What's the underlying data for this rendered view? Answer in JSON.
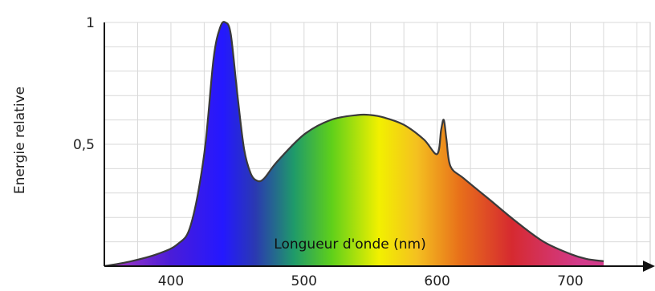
{
  "chart_data": {
    "type": "area",
    "xlabel": "Longueur d'onde (nm)",
    "ylabel": "Energie relative",
    "xlim": [
      350,
      760
    ],
    "ylim": [
      0,
      1
    ],
    "x_ticks": [
      400,
      500,
      600,
      700
    ],
    "x_tick_labels": [
      "400",
      "500",
      "600",
      "700"
    ],
    "y_ticks": [
      0.5,
      1
    ],
    "y_tick_labels": [
      "0,5",
      "1"
    ],
    "grid": true,
    "series": [
      {
        "x": [
          350,
          370,
          390,
          405,
          415,
          425,
          432,
          437,
          441,
          445,
          450,
          455,
          460,
          465,
          470,
          480,
          500,
          520,
          540,
          550,
          560,
          575,
          590,
          600,
          603,
          605,
          607,
          610,
          620,
          640,
          660,
          680,
          700,
          712,
          725
        ],
        "values": [
          0.0,
          0.02,
          0.05,
          0.09,
          0.17,
          0.46,
          0.85,
          0.98,
          1.0,
          0.95,
          0.7,
          0.48,
          0.38,
          0.35,
          0.36,
          0.43,
          0.54,
          0.6,
          0.62,
          0.62,
          0.61,
          0.58,
          0.52,
          0.46,
          0.56,
          0.6,
          0.52,
          0.41,
          0.36,
          0.27,
          0.18,
          0.1,
          0.05,
          0.03,
          0.02
        ]
      }
    ]
  }
}
